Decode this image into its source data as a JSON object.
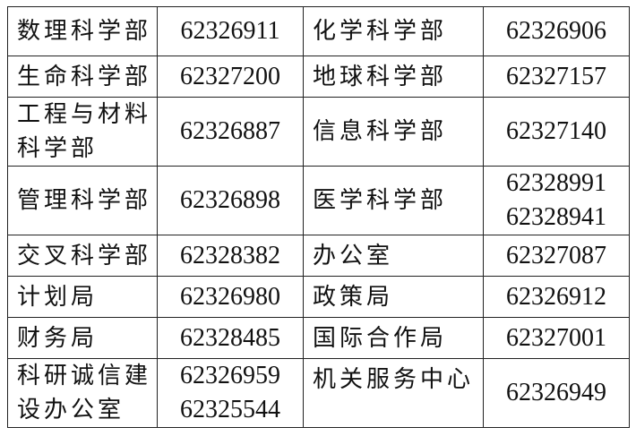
{
  "rows": [
    {
      "dept1": "数理科学部",
      "phone1": [
        "62326911"
      ],
      "dept2": "化学科学部",
      "phone2": [
        "62326906"
      ]
    },
    {
      "dept1": "生命科学部",
      "phone1": [
        "62327200"
      ],
      "dept2": "地球科学部",
      "phone2": [
        "62327157"
      ]
    },
    {
      "dept1": "工程与材料科学部",
      "phone1": [
        "62326887"
      ],
      "dept2": "信息科学部",
      "phone2": [
        "62327140"
      ]
    },
    {
      "dept1": "管理科学部",
      "phone1": [
        "62326898"
      ],
      "dept2": "医学科学部",
      "phone2": [
        "62328991",
        "62328941"
      ]
    },
    {
      "dept1": "交叉科学部",
      "phone1": [
        "62328382"
      ],
      "dept2": "办公室",
      "phone2": [
        "62327087"
      ]
    },
    {
      "dept1": "计划局",
      "phone1": [
        "62326980"
      ],
      "dept2": "政策局",
      "phone2": [
        "62326912"
      ]
    },
    {
      "dept1": "财务局",
      "phone1": [
        "62328485"
      ],
      "dept2": "国际合作局",
      "phone2": [
        "62327001"
      ]
    },
    {
      "dept1": "科研诚信建设办公室",
      "phone1": [
        "62326959",
        "62325544"
      ],
      "dept2": "机关服务中心",
      "phone2": [
        "62326949"
      ]
    }
  ]
}
